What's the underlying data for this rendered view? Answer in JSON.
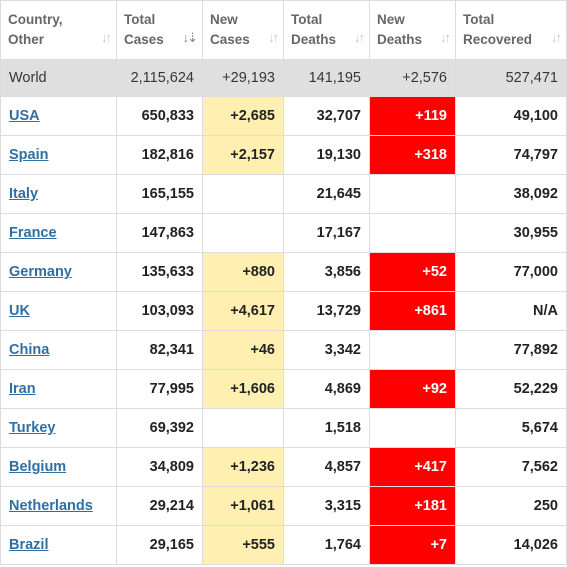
{
  "columns": [
    {
      "line1": "Country,",
      "line2": "Other",
      "sorted": false
    },
    {
      "line1": "Total",
      "line2": "Cases",
      "sorted": true
    },
    {
      "line1": "New",
      "line2": "Cases",
      "sorted": false
    },
    {
      "line1": "Total",
      "line2": "Deaths",
      "sorted": false
    },
    {
      "line1": "New",
      "line2": "Deaths",
      "sorted": false
    },
    {
      "line1": "Total",
      "line2": "Recovered",
      "sorted": false
    }
  ],
  "sort_icon": "sort-arrows-icon",
  "colors": {
    "new_cases_bg": "#fff0b2",
    "new_deaths_bg": "#ff0000",
    "link": "#2f6fa3",
    "world_bg": "#dfdfdf"
  },
  "world": {
    "country": "World",
    "total_cases": "2,115,624",
    "new_cases": "+29,193",
    "total_deaths": "141,195",
    "new_deaths": "+2,576",
    "total_recovered": "527,471"
  },
  "rows": [
    {
      "country": "USA",
      "total_cases": "650,833",
      "new_cases": "+2,685",
      "total_deaths": "32,707",
      "new_deaths": "+119",
      "total_recovered": "49,100"
    },
    {
      "country": "Spain",
      "total_cases": "182,816",
      "new_cases": "+2,157",
      "total_deaths": "19,130",
      "new_deaths": "+318",
      "total_recovered": "74,797"
    },
    {
      "country": "Italy",
      "total_cases": "165,155",
      "new_cases": "",
      "total_deaths": "21,645",
      "new_deaths": "",
      "total_recovered": "38,092"
    },
    {
      "country": "France",
      "total_cases": "147,863",
      "new_cases": "",
      "total_deaths": "17,167",
      "new_deaths": "",
      "total_recovered": "30,955"
    },
    {
      "country": "Germany",
      "total_cases": "135,633",
      "new_cases": "+880",
      "total_deaths": "3,856",
      "new_deaths": "+52",
      "total_recovered": "77,000"
    },
    {
      "country": "UK",
      "total_cases": "103,093",
      "new_cases": "+4,617",
      "total_deaths": "13,729",
      "new_deaths": "+861",
      "total_recovered": "N/A"
    },
    {
      "country": "China",
      "total_cases": "82,341",
      "new_cases": "+46",
      "total_deaths": "3,342",
      "new_deaths": "",
      "total_recovered": "77,892"
    },
    {
      "country": "Iran",
      "total_cases": "77,995",
      "new_cases": "+1,606",
      "total_deaths": "4,869",
      "new_deaths": "+92",
      "total_recovered": "52,229"
    },
    {
      "country": "Turkey",
      "total_cases": "69,392",
      "new_cases": "",
      "total_deaths": "1,518",
      "new_deaths": "",
      "total_recovered": "5,674"
    },
    {
      "country": "Belgium",
      "total_cases": "34,809",
      "new_cases": "+1,236",
      "total_deaths": "4,857",
      "new_deaths": "+417",
      "total_recovered": "7,562"
    },
    {
      "country": "Netherlands",
      "total_cases": "29,214",
      "new_cases": "+1,061",
      "total_deaths": "3,315",
      "new_deaths": "+181",
      "total_recovered": "250"
    },
    {
      "country": "Brazil",
      "total_cases": "29,165",
      "new_cases": "+555",
      "total_deaths": "1,764",
      "new_deaths": "+7",
      "total_recovered": "14,026"
    }
  ]
}
